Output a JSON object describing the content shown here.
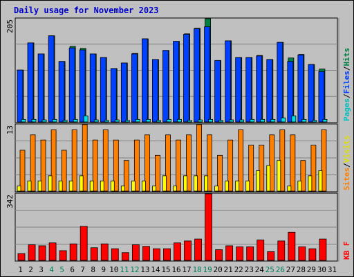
{
  "title": "Daily usage for November 2023",
  "colors": {
    "hits": "#008040",
    "files": "#0040ff",
    "pages": "#00e0e0",
    "visits": "#ffff00",
    "sites": "#ff8000",
    "kbytes": "#ff0000",
    "weekend_label": "#00805c",
    "weekday_label": "#000000"
  },
  "legends": {
    "top": [
      {
        "label": "Pages",
        "color": "#00c0c0"
      },
      {
        "label": "Files",
        "color": "#0040ff"
      },
      {
        "label": "Hits",
        "color": "#008040"
      }
    ],
    "middle": [
      {
        "label": "Sites",
        "color": "#ff8000"
      },
      {
        "label": "Visits",
        "color": "#e0e000"
      }
    ],
    "bottom": [
      {
        "label": "KB F",
        "color": "#ff0000"
      }
    ],
    "separator": "/"
  },
  "chart_data": [
    {
      "type": "bar",
      "panel": "top",
      "ymax_label": "205",
      "ylim": [
        0,
        205
      ],
      "x": [
        1,
        2,
        3,
        4,
        5,
        6,
        7,
        8,
        9,
        10,
        11,
        12,
        13,
        14,
        15,
        16,
        17,
        18,
        19,
        20,
        21,
        22,
        23,
        24,
        25,
        26,
        27,
        28,
        29,
        30,
        31
      ],
      "weekend_days": [
        4,
        5,
        11,
        12,
        18,
        19,
        25,
        26
      ],
      "series": [
        {
          "name": "Hits",
          "values": [
            103,
            157,
            135,
            171,
            120,
            150,
            146,
            135,
            128,
            106,
            117,
            136,
            165,
            124,
            142,
            160,
            175,
            186,
            205,
            122,
            161,
            128,
            128,
            132,
            124,
            158,
            127,
            134,
            114,
            105,
            null
          ]
        },
        {
          "name": "Files",
          "values": [
            103,
            157,
            135,
            171,
            120,
            147,
            143,
            135,
            128,
            106,
            117,
            135,
            165,
            124,
            142,
            160,
            174,
            185,
            189,
            122,
            161,
            128,
            128,
            131,
            124,
            158,
            120,
            133,
            114,
            100,
            null
          ]
        },
        {
          "name": "Pages",
          "values": [
            5,
            5,
            4,
            5,
            3,
            5,
            12,
            4,
            3,
            4,
            3,
            5,
            5,
            3,
            5,
            5,
            3,
            4,
            5,
            3,
            4,
            4,
            5,
            5,
            5,
            8,
            12,
            5,
            3,
            5,
            null
          ]
        }
      ]
    },
    {
      "type": "bar",
      "panel": "middle",
      "ymax_label": "13",
      "ylim": [
        0,
        13
      ],
      "x": [
        1,
        2,
        3,
        4,
        5,
        6,
        7,
        8,
        9,
        10,
        11,
        12,
        13,
        14,
        15,
        16,
        17,
        18,
        19,
        20,
        21,
        22,
        23,
        24,
        25,
        26,
        27,
        28,
        29,
        30,
        31
      ],
      "series": [
        {
          "name": "Sites",
          "values": [
            8,
            11,
            10,
            12,
            8,
            12,
            13,
            10,
            12,
            10,
            6,
            10,
            11,
            7,
            11,
            10,
            11,
            13,
            11,
            7,
            10,
            12,
            9,
            9,
            11,
            12,
            11,
            6,
            9,
            12,
            null
          ]
        },
        {
          "name": "Visits",
          "values": [
            1,
            2,
            2,
            3,
            2,
            2,
            3,
            2,
            2,
            2,
            1,
            2,
            2,
            1,
            3,
            1,
            3,
            3,
            3,
            1,
            2,
            2,
            2,
            4,
            5,
            6,
            1,
            2,
            3,
            4,
            null
          ]
        }
      ]
    },
    {
      "type": "bar",
      "panel": "bottom",
      "ymax_label": "342",
      "ylim": [
        0,
        342
      ],
      "x": [
        1,
        2,
        3,
        4,
        5,
        6,
        7,
        8,
        9,
        10,
        11,
        12,
        13,
        14,
        15,
        16,
        17,
        18,
        19,
        20,
        21,
        22,
        23,
        24,
        25,
        26,
        27,
        28,
        29,
        30,
        31
      ],
      "series": [
        {
          "name": "KB F",
          "values": [
            35,
            80,
            75,
            90,
            50,
            85,
            175,
            65,
            85,
            60,
            40,
            80,
            72,
            60,
            60,
            90,
            100,
            110,
            342,
            55,
            75,
            70,
            70,
            105,
            45,
            100,
            145,
            70,
            60,
            110,
            null
          ]
        }
      ]
    }
  ]
}
